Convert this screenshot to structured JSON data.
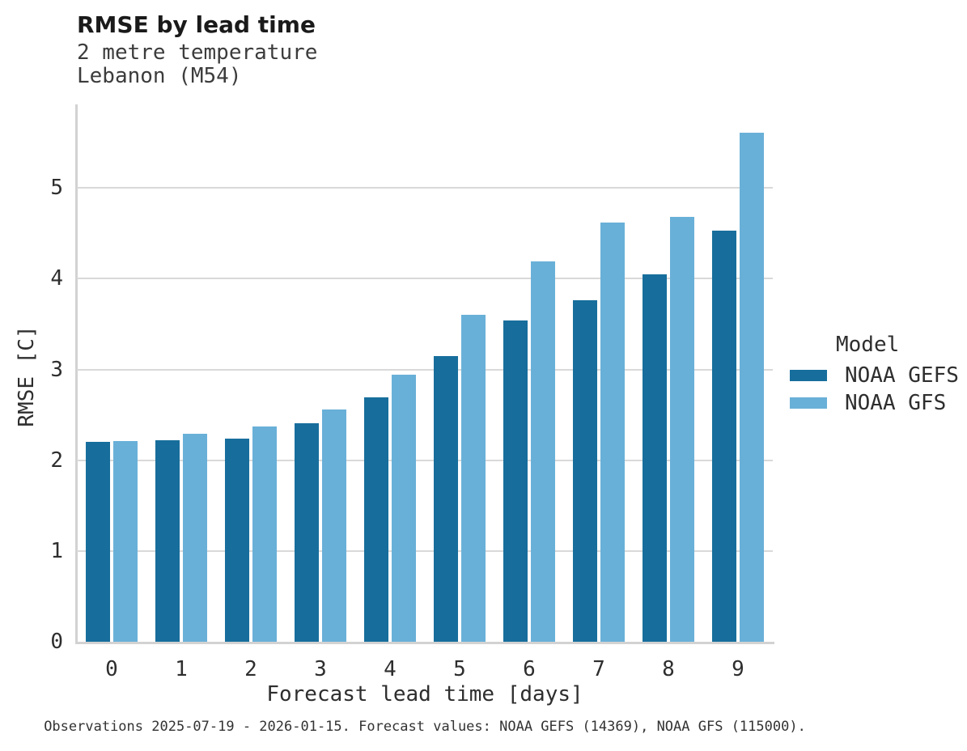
{
  "header": {
    "title": "RMSE by lead time",
    "subtitle_line1": "2 metre temperature",
    "subtitle_line2": "Lebanon (M54)"
  },
  "chart_data": {
    "type": "bar",
    "title": "RMSE by lead time",
    "subtitle": [
      "2 metre temperature",
      "Lebanon (M54)"
    ],
    "categories": [
      "0",
      "1",
      "2",
      "3",
      "4",
      "5",
      "6",
      "7",
      "8",
      "9"
    ],
    "series": [
      {
        "name": "NOAA GEFS",
        "color": "#176e9c",
        "values": [
          2.2,
          2.22,
          2.24,
          2.41,
          2.69,
          3.15,
          3.54,
          3.76,
          4.05,
          4.53
        ]
      },
      {
        "name": "NOAA GFS",
        "color": "#69b0d8",
        "values": [
          2.21,
          2.29,
          2.37,
          2.56,
          2.94,
          3.6,
          4.19,
          4.62,
          4.68,
          5.61
        ]
      }
    ],
    "xlabel": "Forecast lead time [days]",
    "ylabel": "RMSE [C]",
    "ylim": [
      0,
      5.92
    ],
    "yticks": [
      0,
      1,
      2,
      3,
      4,
      5
    ],
    "grid": "horizontal",
    "grid_color": "#d9d9d9",
    "axis_color": "#d2d2d2",
    "legend_position": "right",
    "legend_title": "Model"
  },
  "legend": {
    "title": "Model",
    "items": [
      {
        "label": "NOAA GEFS",
        "color": "#176e9c"
      },
      {
        "label": "NOAA GFS",
        "color": "#69b0d8"
      }
    ]
  },
  "caption": "Observations 2025-07-19 - 2026-01-15. Forecast values: NOAA GEFS (14369), NOAA GFS (115000)."
}
